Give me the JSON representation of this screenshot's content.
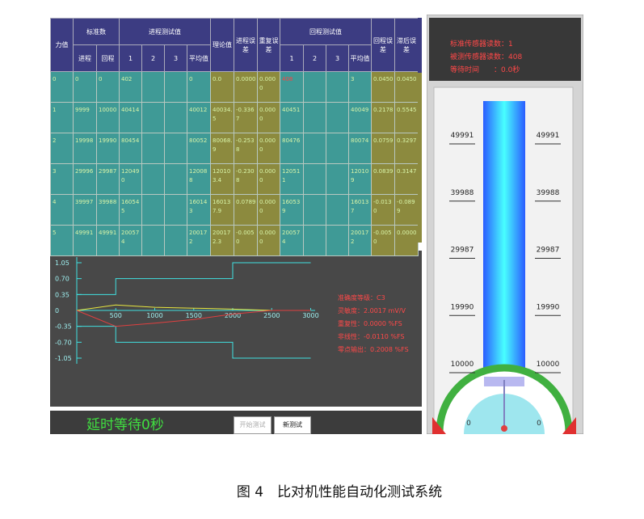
{
  "table": {
    "header_top": [
      "力值",
      "标准数",
      "进程测试值",
      "理论值",
      "进程误差",
      "重复误差",
      "回程测试值",
      "回程误差",
      "滞后误差"
    ],
    "header_sub": [
      "进程",
      "回程",
      "1",
      "2",
      "3",
      "平均值",
      "1",
      "2",
      "3",
      "平均值"
    ],
    "rows": [
      [
        "0",
        "0",
        "0",
        "402",
        null,
        null,
        "0",
        "0.0",
        "0.0000",
        "0.0000",
        "408",
        null,
        null,
        "3",
        "0.0450",
        "0.0450"
      ],
      [
        "1",
        "9999",
        "10000",
        "40414",
        null,
        null,
        "40012",
        "40034.5",
        "-0.3367",
        "0.0000",
        "40451",
        null,
        null,
        "40049",
        "0.2178",
        "0.5545"
      ],
      [
        "2",
        "19998",
        "19990",
        "80454",
        null,
        null,
        "80052",
        "80068.9",
        "-0.2538",
        "0.0000",
        "80476",
        null,
        null,
        "80074",
        "0.0759",
        "0.3297"
      ],
      [
        "3",
        "29996",
        "29987",
        "120490",
        null,
        null,
        "120088",
        "120103.4",
        "-0.2308",
        "0.0000",
        "120511",
        null,
        null,
        "120109",
        "0.0839",
        "0.3147"
      ],
      [
        "4",
        "39997",
        "39988",
        "160545",
        null,
        null,
        "160143",
        "160137.9",
        "0.0789",
        "0.0000",
        "160539",
        null,
        null,
        "160137",
        "-0.0130",
        "-0.0899"
      ],
      [
        "5",
        "49991",
        "49991",
        "200574",
        null,
        null,
        "200172",
        "200172.3",
        "-0.0050",
        "0.0000",
        "200574",
        null,
        null,
        "200172",
        "-0.0050",
        "0.0000"
      ]
    ]
  },
  "plot": {
    "yticks": [
      {
        "value": 1.05,
        "label": "1.05"
      },
      {
        "value": 0.7,
        "label": "0.70"
      },
      {
        "value": 0.35,
        "label": "0.35"
      },
      0,
      {
        "value": -0.35,
        "label": "-0.35"
      },
      {
        "value": -0.7,
        "label": "-0.70"
      },
      {
        "value": -1.05,
        "label": "-1.05"
      }
    ],
    "xticks": [
      500,
      1000,
      1500,
      2000,
      2500,
      3000
    ],
    "lines": [
      {
        "color": "#40e0e0",
        "x": [
          0,
          500,
          500,
          2000,
          2000,
          3000
        ],
        "y": [
          0.35,
          0.35,
          0.7,
          0.7,
          1.05,
          1.05
        ]
      },
      {
        "color": "#40e0e0",
        "x": [
          0,
          500,
          500,
          2000,
          2000,
          3000
        ],
        "y": [
          -0.35,
          -0.35,
          -0.7,
          -0.7,
          -1.05,
          -1.05
        ]
      },
      {
        "color": "#e8e840",
        "x": [
          0,
          500,
          1000,
          1500,
          2000,
          2500,
          3000
        ],
        "y": [
          0,
          0.12,
          0.07,
          0.05,
          0.03,
          0,
          0
        ]
      },
      {
        "color": "#e04040",
        "x": [
          0,
          500,
          1000,
          1500,
          2000,
          2500,
          3000
        ],
        "y": [
          0,
          -0.35,
          -0.28,
          -0.2,
          -0.08,
          0,
          0
        ]
      }
    ],
    "annotations": [
      "准确度等级：C3",
      "灵敏度：2.0017 mV/V",
      "重复性：0.0000 %FS",
      "非线性：-0.0110 %FS",
      "零点输出：0.2008 %FS"
    ]
  },
  "status": {
    "lines": [
      "标准传感器读数：1",
      "被测传感器读数：408",
      "等待时间　　：0.0秒"
    ]
  },
  "gauge": {
    "scale": [
      49991,
      39988,
      29987,
      19990,
      10000
    ],
    "zero_labels": [
      0,
      0
    ]
  },
  "footer": {
    "wait": "延时等待0秒",
    "buttons": [
      "开始测试",
      "新测试"
    ]
  },
  "caption": "图 4　比对机性能自动化测试系统"
}
